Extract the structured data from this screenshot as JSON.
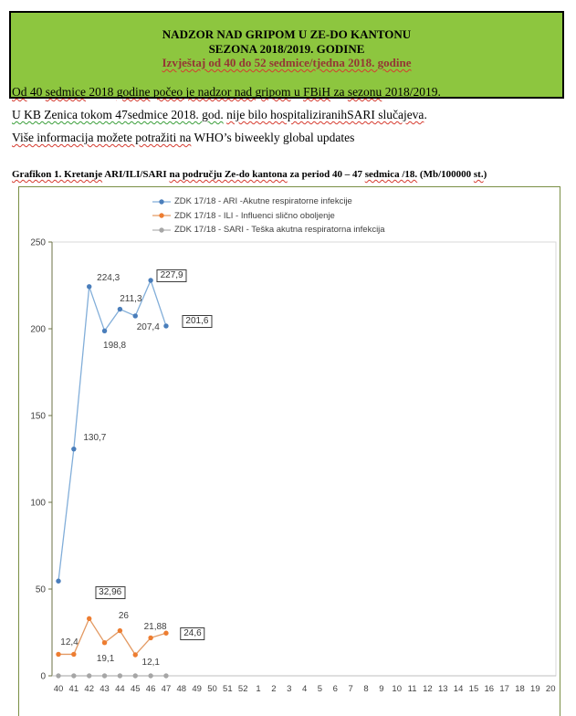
{
  "header": {
    "line1": "NADZOR NAD GRIPOM U ZE-DO KANTONU",
    "line2": "SEZONA 2018/2019. GODINE",
    "line3": "Izvještaj od 40 do 52 sedmice/tjedna 2018. godine",
    "bg_color": "#8dc63f",
    "line3_color": "#943634"
  },
  "paragraphs": [
    {
      "segments": [
        {
          "t": "Od",
          "w": "red"
        },
        {
          "t": " 40 ",
          "w": null
        },
        {
          "t": "sedmice",
          "w": "red"
        },
        {
          "t": " 2018 ",
          "w": null
        },
        {
          "t": "godine",
          "w": "red"
        },
        {
          "t": " ",
          "w": null
        },
        {
          "t": "počeo je nadzor nad gripom",
          "w": "red"
        },
        {
          "t": " u ",
          "w": null
        },
        {
          "t": "FBiH",
          "w": "red"
        },
        {
          "t": " za ",
          "w": null
        },
        {
          "t": "sezonu",
          "w": "red"
        },
        {
          "t": " 2018/2019.",
          "w": null
        }
      ]
    },
    {
      "segments": [
        {
          "t": "U KB Zenica tokom 47sedmice 2018. god.",
          "w": "green"
        },
        {
          "t": " ",
          "w": null
        },
        {
          "t": "nije bilo hospitaliziranihSARI slučajeva",
          "w": "red"
        },
        {
          "t": ".",
          "w": null
        }
      ]
    },
    {
      "segments": [
        {
          "t": "Više informacija možete potražiti na",
          "w": "red"
        },
        {
          "t": " WHO’s biweekly global updates",
          "w": null
        }
      ]
    }
  ],
  "chart_title": {
    "segments": [
      {
        "t": "Grafikon 1. Kretanje",
        "w": "red"
      },
      {
        "t": " ARI/ILI/SARI ",
        "w": null
      },
      {
        "t": "na području Ze-do kantona",
        "w": "red"
      },
      {
        "t": " za period 40 – 47 ",
        "w": null
      },
      {
        "t": "sedmica /18.",
        "w": "red"
      },
      {
        "t": " (Mb/100000 ",
        "w": null
      },
      {
        "t": "st.",
        "w": "red"
      },
      {
        "t": ")",
        "w": null
      }
    ]
  },
  "chart_data": {
    "type": "line",
    "x_categories": [
      "40",
      "41",
      "42",
      "43",
      "44",
      "45",
      "46",
      "47",
      "48",
      "49",
      "50",
      "51",
      "52",
      "1",
      "2",
      "3",
      "4",
      "5",
      "6",
      "7",
      "8",
      "9",
      "10",
      "11",
      "12",
      "13",
      "14",
      "15",
      "16",
      "17",
      "18",
      "19",
      "20"
    ],
    "ylim": [
      0,
      250
    ],
    "yticks": [
      0,
      50,
      100,
      150,
      200,
      250
    ],
    "grid": false,
    "legend_position": "top-center",
    "axis_color": "#6b7245",
    "plot_border_color": "#d9d9d9",
    "series": [
      {
        "name": "ZDK 17/18 - ARI -Akutne respiratorne infekcije",
        "line_color": "#82aed9",
        "marker_color": "#4a7ebb",
        "values": [
          54.6,
          130.7,
          224.3,
          198.8,
          211.3,
          207.4,
          227.9,
          201.6
        ],
        "labels": [
          null,
          "130,7",
          "224,3",
          "198,8",
          "211,3",
          "207,4",
          "227,9",
          "201,6"
        ],
        "boxed": [
          false,
          false,
          false,
          false,
          false,
          false,
          true,
          true
        ],
        "label_offsets": [
          [
            0,
            0
          ],
          [
            22,
            -13
          ],
          [
            20,
            -10
          ],
          [
            10,
            16
          ],
          [
            11,
            -12
          ],
          [
            13,
            12
          ],
          [
            22,
            -6
          ],
          [
            33,
            -6
          ]
        ]
      },
      {
        "name": "ZDK 17/18 - ILI - Influenci slično oboljenje",
        "line_color": "#e39a63",
        "marker_color": "#ed7d31",
        "values": [
          12.4,
          12.4,
          32.96,
          19.1,
          26,
          12.1,
          21.88,
          24.6
        ],
        "labels": [
          "12,4",
          null,
          "32,96",
          "19,1",
          "26",
          "12,1",
          "21,88",
          "24,6"
        ],
        "boxed": [
          false,
          false,
          true,
          false,
          false,
          false,
          false,
          true
        ],
        "label_offsets": [
          [
            11,
            -13
          ],
          [
            0,
            0
          ],
          [
            22,
            -29
          ],
          [
            0,
            17
          ],
          [
            3,
            -17
          ],
          [
            16,
            8
          ],
          [
            4,
            -12
          ],
          [
            28,
            0
          ]
        ]
      },
      {
        "name": "ZDK 17/18 - SARI - Teška akutna respiratorna infekcija",
        "line_color": "#b5b5b5",
        "marker_color": "#a6a6a6",
        "values": [
          0,
          0,
          0,
          0,
          0,
          0,
          0,
          0
        ],
        "labels": [
          null,
          null,
          null,
          null,
          null,
          null,
          null,
          null
        ],
        "boxed": [
          false,
          false,
          false,
          false,
          false,
          false,
          false,
          false
        ],
        "label_offsets": [
          [
            0,
            0
          ],
          [
            0,
            0
          ],
          [
            0,
            0
          ],
          [
            0,
            0
          ],
          [
            0,
            0
          ],
          [
            0,
            0
          ],
          [
            0,
            0
          ],
          [
            0,
            0
          ]
        ]
      }
    ]
  }
}
